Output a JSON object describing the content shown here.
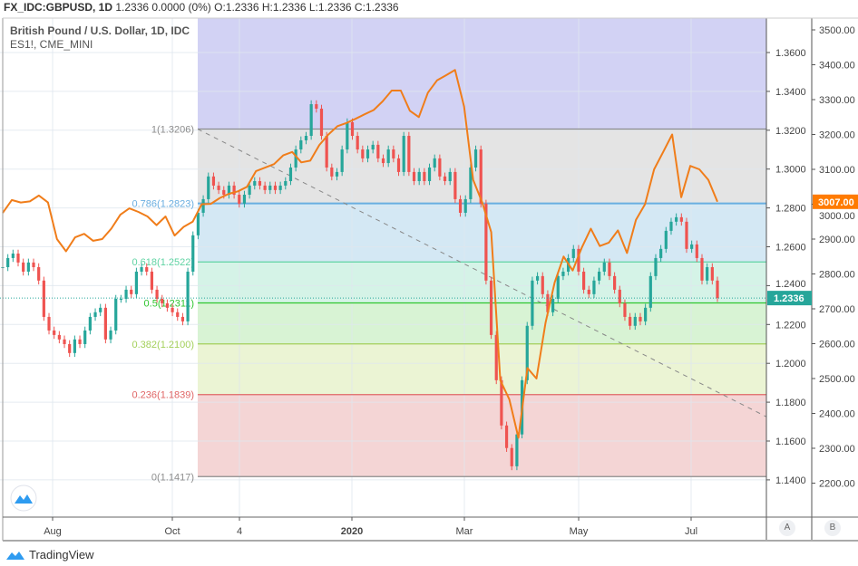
{
  "header": {
    "symbol": "FX_IDC:GBPUSD, 1D",
    "quote": "1.2336 0.0000 (0%) O:1.2336 H:1.2336 L:1.2336 C:1.2336"
  },
  "legend": {
    "main_series": "British Pound / U.S. Dollar, 1D, IDC",
    "compare_series": "ES1!, CME_MINI"
  },
  "scale_buttons": [
    "A",
    "B"
  ],
  "brand": "TradingView",
  "colors": {
    "up": "#26a69a",
    "down": "#ef5350",
    "compare_line": "#f07d1a",
    "last_price_label": "#26a69a",
    "compare_price_label": "#ff7b00"
  },
  "chart_data": {
    "type": "candlestick",
    "x_tick_labels": [
      "Aug",
      "Oct",
      "4",
      "2020",
      "Mar",
      "May",
      "Jul"
    ],
    "y_left": {
      "ticks": [
        1.36,
        1.34,
        1.32,
        1.3,
        1.28,
        1.26,
        1.24,
        1.22,
        1.2,
        1.18,
        1.16,
        1.14
      ],
      "range": [
        1.1335,
        1.3785
      ],
      "last_price": "1.2336"
    },
    "y_right": {
      "ticks": [
        3500,
        3400,
        3300,
        3200,
        3100,
        3000,
        2900,
        2800,
        2700,
        2600,
        2500,
        2400,
        2300,
        2200
      ],
      "last_price": "3007.00"
    },
    "series": [
      {
        "name": "British Pound / U.S. Dollar, 1D, IDC",
        "style": "candles",
        "axis": "left",
        "closes": [
          1.2495,
          1.2542,
          1.2565,
          1.2519,
          1.2472,
          1.2519,
          1.2495,
          1.2426,
          1.2239,
          1.2169,
          1.2146,
          1.2123,
          1.2099,
          1.2053,
          1.2123,
          1.2099,
          1.2169,
          1.2239,
          1.2263,
          1.2286,
          1.2123,
          1.2169,
          1.2332,
          1.2332,
          1.2379,
          1.2356,
          1.2472,
          1.2495,
          1.2472,
          1.2379,
          1.2332,
          1.2309,
          1.2286,
          1.2263,
          1.2239,
          1.2216,
          1.2472,
          1.2659,
          1.2775,
          1.2845,
          1.2962,
          1.2915,
          1.2892,
          1.2868,
          1.2915,
          1.2868,
          1.2822,
          1.2868,
          1.2915,
          1.2938,
          1.2915,
          1.2892,
          1.2915,
          1.2892,
          1.2915,
          1.2938,
          1.3008,
          1.3101,
          1.3148,
          1.3171,
          1.3334,
          1.3311,
          1.3171,
          1.3008,
          1.2962,
          1.2985,
          1.3101,
          1.3241,
          1.3171,
          1.3101,
          1.3055,
          1.3101,
          1.3125,
          1.3055,
          1.3031,
          1.3101,
          1.3055,
          1.2985,
          1.3171,
          1.2985,
          1.2938,
          1.2985,
          1.2938,
          1.3008,
          1.3055,
          1.2962,
          1.2938,
          1.2985,
          1.2845,
          1.2775,
          1.2845,
          1.3008,
          1.3101,
          1.2822,
          1.2426,
          1.2146,
          1.1913,
          1.168,
          1.1564,
          1.147,
          1.1634,
          1.1913,
          1.2193,
          1.2426,
          1.2449,
          1.2356,
          1.2263,
          1.2332,
          1.2449,
          1.2472,
          1.2542,
          1.2589,
          1.2472,
          1.2379,
          1.2356,
          1.2426,
          1.2472,
          1.2519,
          1.2449,
          1.2379,
          1.2309,
          1.2239,
          1.2193,
          1.2239,
          1.2216,
          1.2286,
          1.2449,
          1.2542,
          1.2589,
          1.2682,
          1.2729,
          1.2752,
          1.2729,
          1.2589,
          1.2612,
          1.2542,
          1.2426,
          1.2495,
          1.2426,
          1.2336
        ]
      },
      {
        "name": "ES1!, CME_MINI",
        "style": "line",
        "axis": "right",
        "values": [
          2975,
          3012,
          3005,
          3008,
          3025,
          3005,
          2900,
          2865,
          2905,
          2915,
          2895,
          2900,
          2930,
          2970,
          2988,
          2978,
          2965,
          2940,
          2965,
          2910,
          2935,
          2950,
          3000,
          3001,
          3018,
          3030,
          3037,
          3050,
          3095,
          3105,
          3115,
          3140,
          3150,
          3120,
          3125,
          3170,
          3200,
          3224,
          3233,
          3245,
          3258,
          3270,
          3295,
          3326,
          3326,
          3268,
          3250,
          3320,
          3355,
          3370,
          3385,
          3280,
          3070,
          3005,
          2920,
          2495,
          2440,
          2330,
          2530,
          2500,
          2660,
          2775,
          2850,
          2810,
          2875,
          2930,
          2880,
          2890,
          2925,
          2860,
          2955,
          3000,
          3100,
          3150,
          3200,
          3020,
          3110,
          3100,
          3070,
          3007
        ]
      }
    ],
    "fibonacci": {
      "levels": [
        {
          "ratio": "1",
          "price": "1.3206",
          "label": "1(1.3206)",
          "color": "#8c8c8c",
          "fill": "#e4e4e4"
        },
        {
          "ratio": "0.786",
          "price": "1.2823",
          "label": "0.786(1.2823)",
          "color": "#6aaee0",
          "fill": "#d4e8f4"
        },
        {
          "ratio": "0.618",
          "price": "1.2522",
          "label": "0.618(1.2522)",
          "color": "#5fd3a3",
          "fill": "#d5f3e7"
        },
        {
          "ratio": "0.5",
          "price": "1.2311",
          "label": "0.5(1.2311)",
          "color": "#2ec52e",
          "fill": "#d8f3d4"
        },
        {
          "ratio": "0.382",
          "price": "1.2100",
          "label": "0.382(1.2100)",
          "color": "#a3d05a",
          "fill": "#ebf4d4"
        },
        {
          "ratio": "0.236",
          "price": "1.1839",
          "label": "0.236(1.1839)",
          "color": "#e06666",
          "fill": "#f4d5d5"
        },
        {
          "ratio": "0",
          "price": "1.1417",
          "label": "0(1.1417)",
          "color": "#8c8c8c",
          "fill": null
        }
      ],
      "above_fill": "#d2d2f4"
    },
    "trendline": {
      "style": "dashed",
      "from_price": 1.3206,
      "to_price": 1.1725
    },
    "grid": true,
    "legend_position": "top-left"
  }
}
